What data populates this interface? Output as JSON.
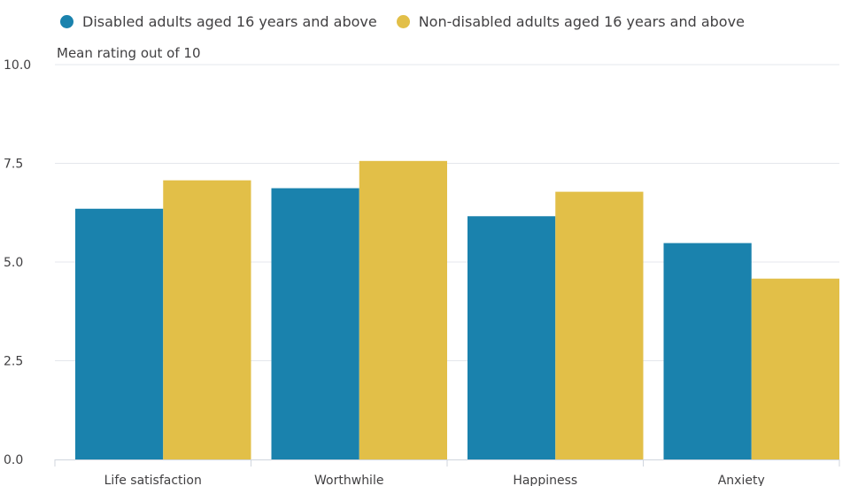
{
  "chart_data": {
    "type": "bar",
    "categories": [
      "Life satisfaction",
      "Worthwhile",
      "Happiness",
      "Anxiety"
    ],
    "series": [
      {
        "name": "Disabled adults aged 16 years and above",
        "color": "#206095",
        "values": [
          6.35,
          6.87,
          6.16,
          5.48
        ]
      },
      {
        "name": "Non-disabled adults aged 16 years and above",
        "color": "#e2bb3e",
        "values": [
          7.07,
          7.56,
          6.78,
          4.58
        ]
      }
    ],
    "ylabel": "Mean rating out of 10",
    "ylim": [
      0,
      10
    ],
    "yticks": [
      "0.0",
      "2.5",
      "5.0",
      "7.5",
      "10.0"
    ],
    "grid": true,
    "legend_position": "top-left"
  }
}
